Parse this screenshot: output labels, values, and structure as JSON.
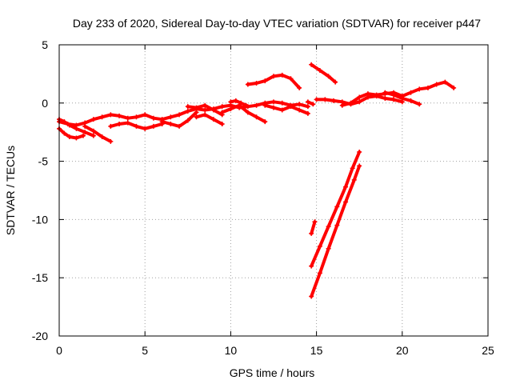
{
  "chart_data": {
    "type": "scatter",
    "title": "Day 233 of 2020, Sidereal Day-to-day VTEC variation (SDTVAR) for receiver p447",
    "xlabel": "GPS time / hours",
    "ylabel": "SDTVAR / TECUs",
    "xlim": [
      0,
      25
    ],
    "ylim": [
      -20,
      5
    ],
    "x_ticks": [
      0,
      5,
      10,
      15,
      20,
      25
    ],
    "y_ticks": [
      5,
      0,
      -5,
      -10,
      -15,
      -20
    ],
    "grid": true,
    "legend": "none",
    "series_color": "#ff0000",
    "series": [
      {
        "x": [
          0.0,
          0.5,
          1.0,
          1.5,
          2.0,
          2.5,
          3.0,
          3.5,
          4.0,
          4.5,
          5.0,
          5.5,
          6.0,
          6.5,
          7.0,
          7.5,
          8.0,
          8.5,
          9.0,
          9.5,
          10.0,
          10.5,
          11.0,
          11.5,
          12.0,
          12.5,
          13.0,
          13.5,
          14.0,
          14.5
        ],
        "y": [
          -1.6,
          -1.8,
          -1.9,
          -1.7,
          -1.4,
          -1.2,
          -1.0,
          -1.1,
          -1.3,
          -1.2,
          -1.0,
          -1.3,
          -1.4,
          -1.2,
          -1.0,
          -0.7,
          -0.5,
          -0.6,
          -0.5,
          -0.3,
          -0.2,
          -0.4,
          -0.3,
          -0.2,
          0.0,
          0.1,
          0.0,
          -0.2,
          -0.1,
          -0.3
        ]
      },
      {
        "x": [
          0.0,
          0.3,
          0.6,
          1.0,
          1.5,
          2.0
        ],
        "y": [
          -1.4,
          -1.6,
          -1.9,
          -2.2,
          -2.5,
          -2.8
        ]
      },
      {
        "x": [
          0.0,
          0.3,
          0.6,
          1.0,
          1.4
        ],
        "y": [
          -2.2,
          -2.6,
          -2.9,
          -3.0,
          -2.8
        ]
      },
      {
        "x": [
          1.5,
          2.0,
          2.5,
          3.0
        ],
        "y": [
          -2.0,
          -2.4,
          -2.9,
          -3.3
        ]
      },
      {
        "x": [
          3.0,
          3.5,
          4.0,
          4.5,
          5.0,
          5.5,
          6.0
        ],
        "y": [
          -2.0,
          -1.8,
          -1.7,
          -2.0,
          -2.2,
          -2.0,
          -1.8
        ]
      },
      {
        "x": [
          6.0,
          6.5,
          7.0,
          7.5,
          8.0
        ],
        "y": [
          -1.6,
          -1.8,
          -2.0,
          -1.5,
          -0.8
        ]
      },
      {
        "x": [
          7.5,
          8.0,
          8.5,
          9.0,
          9.5
        ],
        "y": [
          -0.3,
          -0.4,
          -0.2,
          -0.6,
          -1.0
        ]
      },
      {
        "x": [
          8.0,
          8.5,
          9.0,
          9.5
        ],
        "y": [
          -1.2,
          -1.0,
          -1.4,
          -1.8
        ]
      },
      {
        "x": [
          9.5,
          10.0,
          10.5,
          11.0,
          11.5,
          12.0
        ],
        "y": [
          -0.8,
          -0.5,
          -0.2,
          -0.8,
          -1.2,
          -1.6
        ]
      },
      {
        "x": [
          10.0,
          10.3,
          10.6,
          10.9
        ],
        "y": [
          0.1,
          0.2,
          0.0,
          -0.2
        ]
      },
      {
        "x": [
          12.0,
          12.5,
          13.0,
          13.5,
          14.0,
          14.5
        ],
        "y": [
          -0.2,
          -0.4,
          -0.6,
          -0.3,
          -0.6,
          -0.9
        ]
      },
      {
        "x": [
          11.0,
          11.5,
          12.0,
          12.5,
          13.0,
          13.5,
          14.0
        ],
        "y": [
          1.6,
          1.7,
          1.9,
          2.3,
          2.4,
          2.1,
          1.3
        ]
      },
      {
        "x": [
          14.5,
          14.8
        ],
        "y": [
          0.1,
          -0.1
        ]
      },
      {
        "x": [
          14.7,
          15.2,
          15.7,
          16.1
        ],
        "y": [
          3.3,
          2.8,
          2.3,
          1.8
        ]
      },
      {
        "x": [
          14.7,
          14.9
        ],
        "y": [
          -11.2,
          -10.2
        ]
      },
      {
        "x": [
          14.7,
          15.2,
          15.7,
          16.2,
          16.7,
          17.1,
          17.5
        ],
        "y": [
          -14.0,
          -12.3,
          -10.6,
          -8.9,
          -7.2,
          -5.6,
          -4.2
        ]
      },
      {
        "x": [
          14.7,
          15.2,
          15.7,
          16.2,
          16.7,
          17.2,
          17.5
        ],
        "y": [
          -16.6,
          -14.6,
          -12.5,
          -10.5,
          -8.5,
          -6.6,
          -5.4
        ]
      },
      {
        "x": [
          15.0,
          15.5,
          16.0,
          16.5,
          17.0,
          17.5,
          18.0,
          18.5,
          19.0,
          19.5,
          20.0
        ],
        "y": [
          0.3,
          0.3,
          0.2,
          0.1,
          -0.1,
          0.1,
          0.5,
          0.6,
          0.4,
          0.3,
          0.1
        ]
      },
      {
        "x": [
          16.5,
          17.0,
          17.5,
          18.0,
          18.5,
          19.0,
          19.5,
          20.0,
          20.5,
          21.0,
          21.5,
          22.0,
          22.5,
          23.0
        ],
        "y": [
          -0.2,
          0.0,
          0.5,
          0.8,
          0.7,
          0.8,
          0.9,
          0.6,
          0.9,
          1.2,
          1.3,
          1.6,
          1.8,
          1.3
        ]
      },
      {
        "x": [
          19.0,
          19.5,
          20.0,
          20.5,
          21.0
        ],
        "y": [
          0.9,
          0.7,
          0.4,
          0.2,
          -0.1
        ]
      }
    ]
  }
}
